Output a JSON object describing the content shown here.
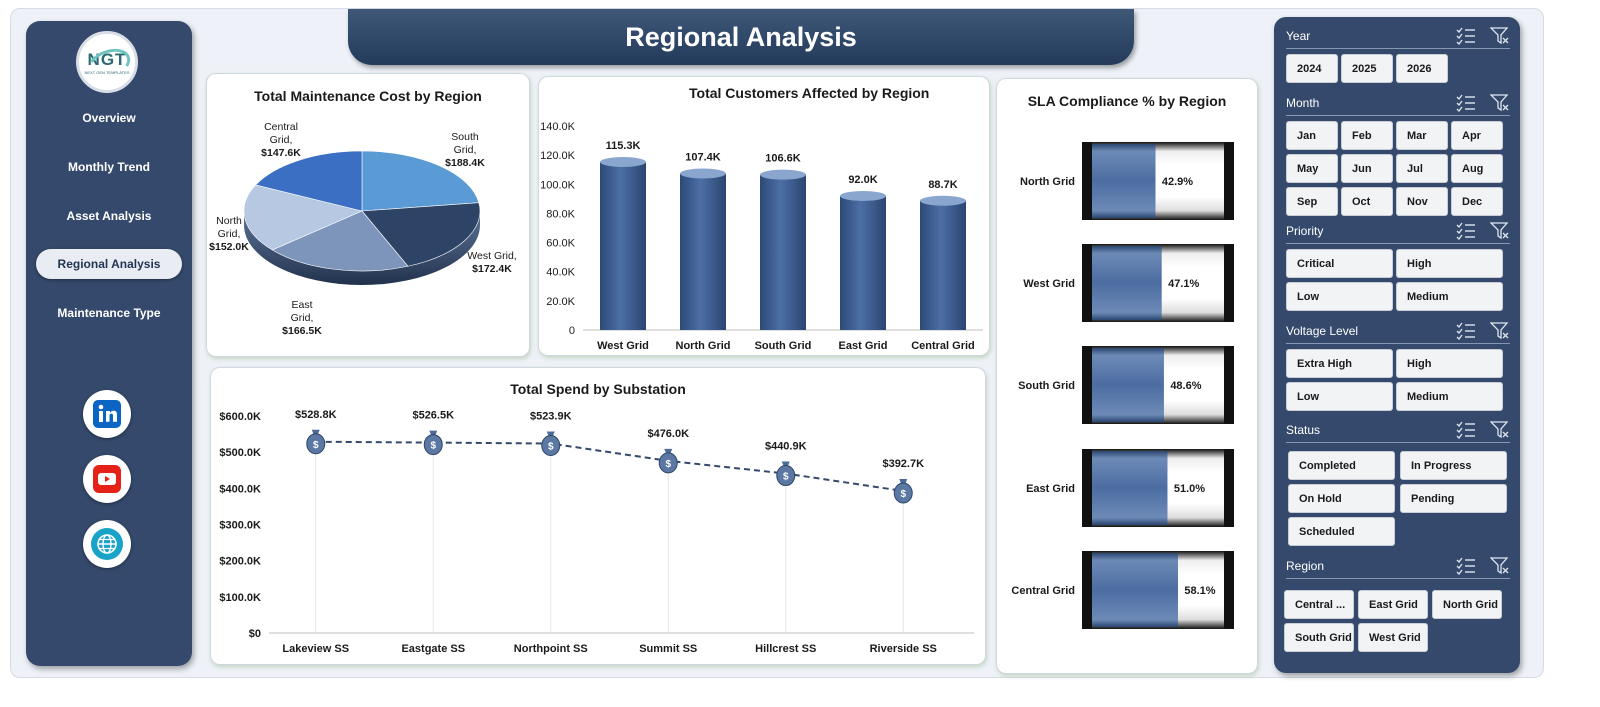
{
  "title": "Regional Analysis",
  "logo": {
    "text": "NGT",
    "subtext": "NEXT GEN TEMPLATES"
  },
  "nav": {
    "items": [
      {
        "label": "Overview"
      },
      {
        "label": "Monthly Trend"
      },
      {
        "label": "Asset Analysis"
      },
      {
        "label": "Regional Analysis",
        "active": true
      },
      {
        "label": "Maintenance Type"
      }
    ],
    "social": [
      "linkedin-icon",
      "youtube-icon",
      "globe-icon"
    ]
  },
  "charts": {
    "pie_title": "Total Maintenance Cost by Region",
    "bar_title": "Total Customers Affected by Region",
    "sla_title": "SLA Compliance % by Region",
    "line_title": "Total Spend by Substation"
  },
  "chart_data": [
    {
      "type": "pie",
      "title": "Total Maintenance Cost by Region",
      "slices": [
        {
          "label": "South Grid",
          "value": 188.4,
          "display": "$188.4K",
          "color": "#5b9bd5"
        },
        {
          "label": "West Grid",
          "value": 172.4,
          "display": "$172.4K",
          "color": "#2e4466"
        },
        {
          "label": "East Grid",
          "value": 166.5,
          "display": "$166.5K",
          "color": "#7e95bb"
        },
        {
          "label": "North Grid",
          "value": 152.0,
          "display": "$152.0K",
          "color": "#b7c8e2"
        },
        {
          "label": "Central Grid",
          "value": 147.6,
          "display": "$147.6K",
          "color": "#3b6fc4"
        }
      ]
    },
    {
      "type": "bar",
      "title": "Total Customers Affected by Region",
      "categories": [
        "West Grid",
        "North Grid",
        "South Grid",
        "East Grid",
        "Central Grid"
      ],
      "values": [
        115.3,
        107.4,
        106.6,
        92.0,
        88.7
      ],
      "labels": [
        "115.3K",
        "107.4K",
        "106.6K",
        "92.0K",
        "88.7K"
      ],
      "yticks": [
        "0",
        "20.0K",
        "40.0K",
        "60.0K",
        "80.0K",
        "100.0K",
        "120.0K",
        "140.0K"
      ],
      "ylim": [
        0,
        140
      ]
    },
    {
      "type": "bar",
      "title": "SLA Compliance % by Region",
      "categories": [
        "North Grid",
        "West Grid",
        "South Grid",
        "East Grid",
        "Central Grid"
      ],
      "values": [
        42.9,
        47.1,
        48.6,
        51.0,
        58.1
      ],
      "labels": [
        "42.9%",
        "47.1%",
        "48.6%",
        "51.0%",
        "58.1%"
      ],
      "ylim": [
        0,
        100
      ]
    },
    {
      "type": "line",
      "title": "Total Spend by Substation",
      "categories": [
        "Lakeview SS",
        "Eastgate SS",
        "Northpoint SS",
        "Summit SS",
        "Hillcrest SS",
        "Riverside SS"
      ],
      "values": [
        528.8,
        526.5,
        523.9,
        476.0,
        440.9,
        392.7
      ],
      "labels": [
        "$528.8K",
        "$526.5K",
        "$523.9K",
        "$476.0K",
        "$440.9K",
        "$392.7K"
      ],
      "yticks": [
        "$0",
        "$100.0K",
        "$200.0K",
        "$300.0K",
        "$400.0K",
        "$500.0K",
        "$600.0K"
      ],
      "ylim": [
        0,
        600
      ],
      "marker": "money-bag-icon"
    }
  ],
  "slicers": {
    "year": {
      "label": "Year",
      "options": [
        "2024",
        "2025",
        "2026"
      ]
    },
    "month": {
      "label": "Month",
      "options": [
        "Jan",
        "Feb",
        "Mar",
        "Apr",
        "May",
        "Jun",
        "Jul",
        "Aug",
        "Sep",
        "Oct",
        "Nov",
        "Dec"
      ]
    },
    "priority": {
      "label": "Priority",
      "options": [
        "Critical",
        "High",
        "Low",
        "Medium"
      ]
    },
    "voltage": {
      "label": "Voltage Level",
      "options": [
        "Extra High",
        "High",
        "Low",
        "Medium"
      ]
    },
    "status": {
      "label": "Status",
      "options": [
        "Completed",
        "In Progress",
        "On Hold",
        "Pending",
        "Scheduled"
      ]
    },
    "region": {
      "label": "Region",
      "options": [
        "Central ...",
        "East Grid",
        "North Grid",
        "South Grid",
        "West Grid"
      ]
    }
  },
  "colors": {
    "panel": "#34496b",
    "bar": "#3c5d8f",
    "accent": "#5b9bd5"
  }
}
